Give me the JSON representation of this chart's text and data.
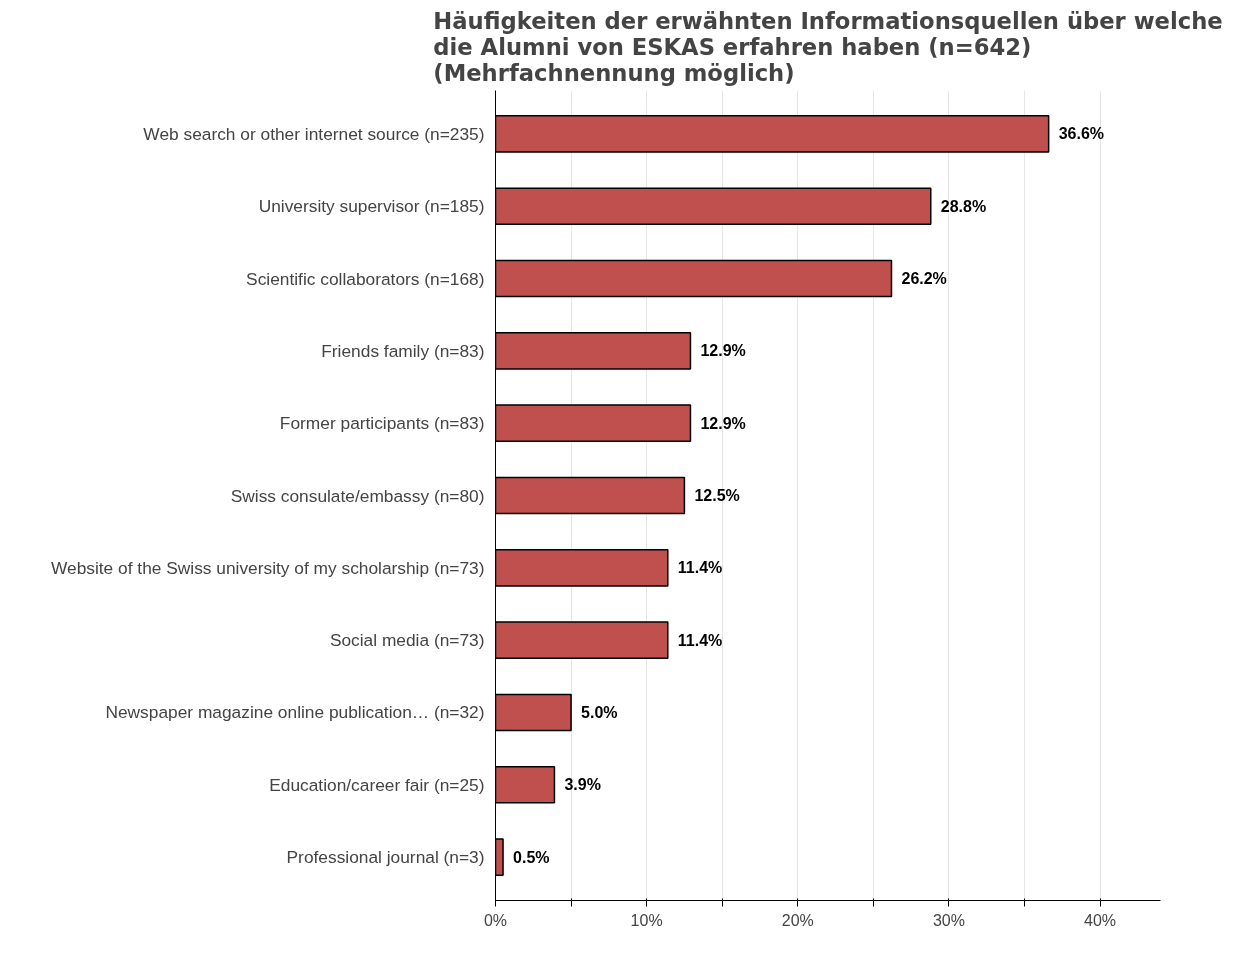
{
  "chart_data": {
    "type": "bar",
    "orientation": "horizontal",
    "title": "Häufigkeiten der erwähnten Informationsquellen über welche\ndie Alumni von ESKAS erfahren haben (n=642)\n(Mehrfachnennung möglich)",
    "categories": [
      "Web search or other internet source (n=235)",
      "University supervisor (n=185)",
      "Scientific collaborators (n=168)",
      "Friends family (n=83)",
      "Former participants (n=83)",
      "Swiss consulate/embassy (n=80)",
      "Website of the Swiss university of my scholarship (n=73)",
      "Social media (n=73)",
      "Newspaper magazine online publication… (n=32)",
      "Education/career fair (n=25)",
      "Professional journal (n=3)"
    ],
    "values": [
      36.6,
      28.8,
      26.2,
      12.9,
      12.9,
      12.5,
      11.4,
      11.4,
      5.0,
      3.9,
      0.5
    ],
    "value_labels": [
      "36.6%",
      "28.8%",
      "26.2%",
      "12.9%",
      "12.9%",
      "12.5%",
      "11.4%",
      "11.4%",
      "5.0%",
      "3.9%",
      "0.5%"
    ],
    "color": "#c0504d",
    "xlim": [
      0,
      44
    ],
    "xticks": [
      {
        "value": 0,
        "label": "0%"
      },
      {
        "value": 5,
        "label": null
      },
      {
        "value": 10,
        "label": "10%"
      },
      {
        "value": 15,
        "label": null
      },
      {
        "value": 20,
        "label": "20%"
      },
      {
        "value": 25,
        "label": null
      },
      {
        "value": 30,
        "label": "30%"
      },
      {
        "value": 35,
        "label": null
      },
      {
        "value": 40,
        "label": "40%"
      }
    ],
    "grid": "x"
  }
}
